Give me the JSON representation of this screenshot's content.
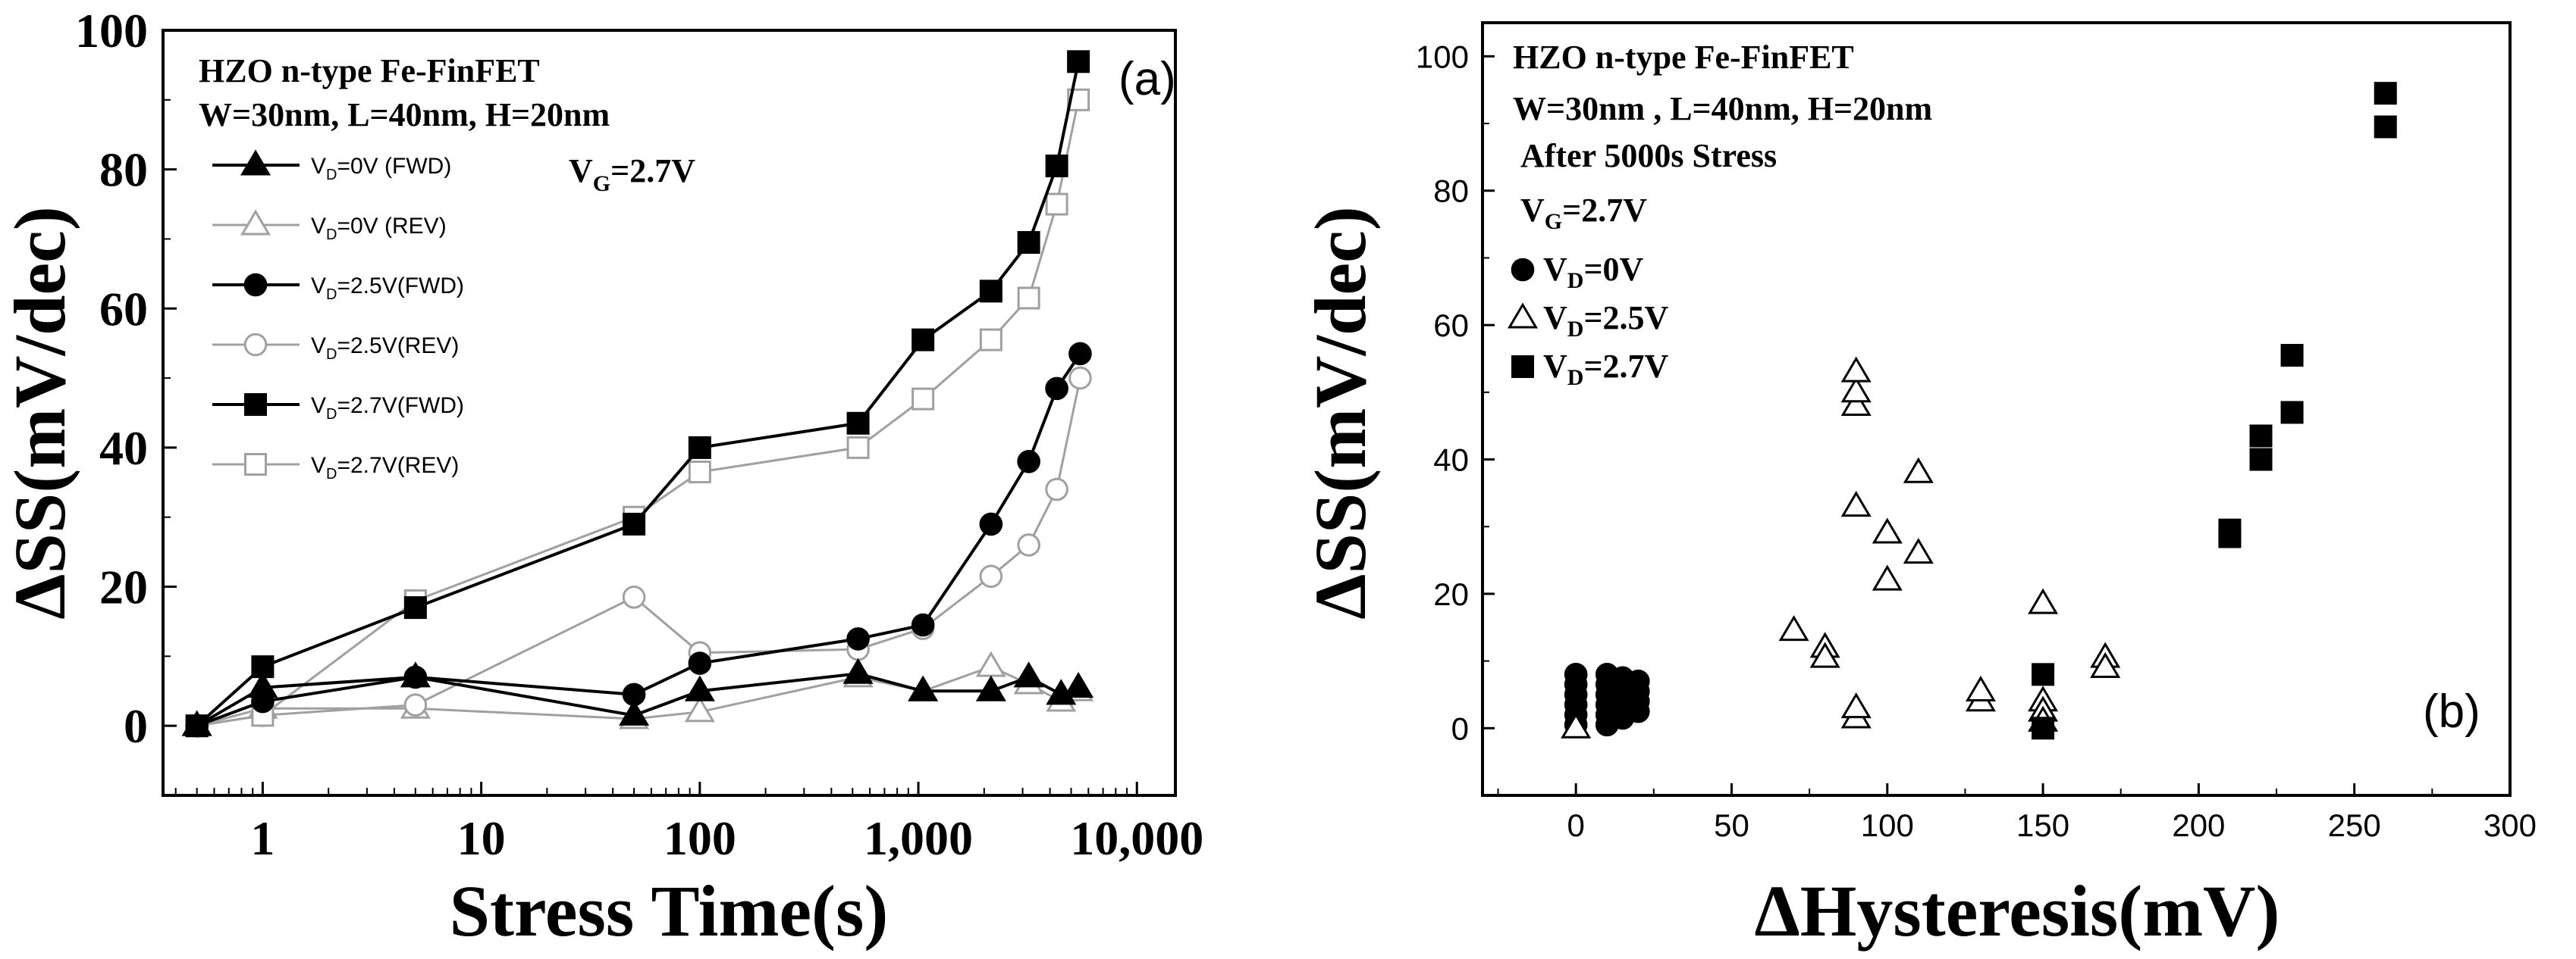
{
  "chart_data": [
    {
      "type": "line",
      "panel_label": "(a)",
      "xscale": "log",
      "xlim": [
        0.35,
        15000
      ],
      "ylim": [
        -10,
        100
      ],
      "xlabel": "Stress Time(s)",
      "ylabel": "ΔSS(mV/dec)",
      "xticks": [
        {
          "v": 1,
          "label": "1"
        },
        {
          "v": 10,
          "label": "10"
        },
        {
          "v": 100,
          "label": "100"
        },
        {
          "v": 1000,
          "label": "1,000"
        },
        {
          "v": 10000,
          "label": "10,000"
        }
      ],
      "yticks": [
        0,
        20,
        40,
        60,
        80,
        100
      ],
      "annotations": {
        "title": "HZO n-type Fe-FinFET",
        "geometry": "W=30nm, L=40nm, H=20nm",
        "vg_main": "V",
        "vg_sub": "G",
        "vg_rest": "=2.7V"
      },
      "series": [
        {
          "name": "VD=0V (FWD)",
          "legend_sub": "D",
          "legend_pre": "V",
          "legend_rest": "=0V   (FWD)",
          "marker": "triangle",
          "filled": true,
          "color": "#000000",
          "x": [
            0.5,
            1,
            5,
            50,
            100,
            530,
            1050,
            2150,
            3200,
            4500,
            5400
          ],
          "y": [
            0,
            5.5,
            7,
            1.5,
            5,
            7.5,
            5,
            5,
            7,
            4.5,
            5.5
          ]
        },
        {
          "name": "VD=0V (REV)",
          "legend_sub": "D",
          "legend_pre": "V",
          "legend_rest": "=0V   (REV)",
          "marker": "triangle",
          "filled": false,
          "color": "#a0a0a0",
          "x": [
            0.5,
            1,
            5,
            50,
            100,
            530,
            1050,
            2150,
            3200,
            4500,
            5400
          ],
          "y": [
            0,
            2.5,
            2.5,
            1,
            2,
            7,
            5,
            8.5,
            6,
            3.5,
            5
          ]
        },
        {
          "name": "VD=2.5V(FWD)",
          "legend_sub": "D",
          "legend_pre": "V",
          "legend_rest": "=2.5V(FWD)",
          "marker": "circle",
          "filled": true,
          "color": "#000000",
          "x": [
            0.5,
            1,
            5,
            50,
            100,
            530,
            1050,
            2150,
            3200,
            4300,
            5500
          ],
          "y": [
            0,
            3.5,
            7,
            4.5,
            9,
            12.5,
            14.5,
            29,
            38,
            48.5,
            53.5
          ]
        },
        {
          "name": "VD=2.5V(REV)",
          "legend_sub": "D",
          "legend_pre": "V",
          "legend_rest": "=2.5V(REV)",
          "marker": "circle",
          "filled": false,
          "color": "#a0a0a0",
          "x": [
            0.5,
            1,
            5,
            50,
            100,
            530,
            1050,
            2150,
            3200,
            4300,
            5500
          ],
          "y": [
            0,
            1.5,
            3,
            18.5,
            10.5,
            11,
            14,
            21.5,
            26,
            34,
            50
          ]
        },
        {
          "name": "VD=2.7V(FWD)",
          "legend_sub": "D",
          "legend_pre": "V",
          "legend_rest": "=2.7V(FWD)",
          "marker": "square",
          "filled": true,
          "color": "#000000",
          "x": [
            0.5,
            1,
            5,
            50,
            100,
            530,
            1050,
            2150,
            3200,
            4300,
            5400
          ],
          "y": [
            0,
            8.5,
            17,
            29,
            40,
            43.5,
            55.5,
            62.5,
            69.5,
            80.5,
            95.5
          ]
        },
        {
          "name": "VD=2.7V(REV)",
          "legend_sub": "D",
          "legend_pre": "V",
          "legend_rest": "=2.7V(REV)",
          "marker": "square",
          "filled": false,
          "color": "#a0a0a0",
          "x": [
            0.5,
            1,
            5,
            50,
            100,
            530,
            1050,
            2150,
            3200,
            4300,
            5400
          ],
          "y": [
            0,
            1.5,
            18,
            30,
            36.5,
            40,
            47,
            55.5,
            61.5,
            75,
            90
          ]
        }
      ]
    },
    {
      "type": "scatter",
      "panel_label": "(b)",
      "xlim": [
        -30,
        300
      ],
      "ylim": [
        -10,
        105
      ],
      "xlabel": "ΔHysteresis(mV)",
      "ylabel": "ΔSS(mV/dec)",
      "xticks": [
        0,
        50,
        100,
        150,
        200,
        250,
        300
      ],
      "yticks": [
        0,
        20,
        40,
        60,
        80,
        100
      ],
      "annotations": {
        "title": "HZO n-type Fe-FinFET",
        "geometry": "W=30nm , L=40nm, H=20nm",
        "stress": "After 5000s Stress",
        "vg_main": "V",
        "vg_sub": "G",
        "vg_rest": "=2.7V"
      },
      "series": [
        {
          "name": "VD=0V",
          "legend_pre": "V",
          "legend_sub": "D",
          "legend_rest": "=0V",
          "marker": "circle",
          "filled": true,
          "x": [
            0,
            0,
            0,
            0,
            0,
            0,
            10,
            10,
            10,
            10,
            10,
            10,
            15,
            15,
            15,
            15,
            15,
            20,
            20,
            20,
            20
          ],
          "y": [
            0.5,
            2,
            3.5,
            5,
            6.5,
            8,
            0.5,
            2,
            3.5,
            5,
            6.5,
            8,
            1.5,
            3,
            4.5,
            6,
            7.5,
            2.5,
            4,
            5.5,
            7
          ]
        },
        {
          "name": "VD=2.5V",
          "legend_pre": "V",
          "legend_sub": "D",
          "legend_rest": "=2.5V",
          "marker": "triangle",
          "filled": false,
          "x": [
            0,
            70,
            80,
            80,
            90,
            90,
            90,
            90,
            90,
            90,
            100,
            100,
            110,
            110,
            130,
            130,
            150,
            150,
            150,
            150,
            170,
            170
          ],
          "y": [
            0,
            14.5,
            12,
            10.5,
            1.5,
            3,
            33,
            48,
            50,
            53,
            22,
            29,
            26,
            38,
            4,
            5.5,
            18.5,
            4,
            2.5,
            1,
            10.5,
            9
          ]
        },
        {
          "name": "VD=2.7V",
          "legend_pre": "V",
          "legend_sub": "D",
          "legend_rest": "=2.7V",
          "marker": "square",
          "filled": true,
          "x": [
            150,
            150,
            210,
            210,
            220,
            220,
            230,
            230,
            260,
            260
          ],
          "y": [
            0,
            8,
            28.5,
            29.5,
            40,
            43.5,
            47,
            55.5,
            89.5,
            94.5
          ]
        }
      ]
    }
  ]
}
